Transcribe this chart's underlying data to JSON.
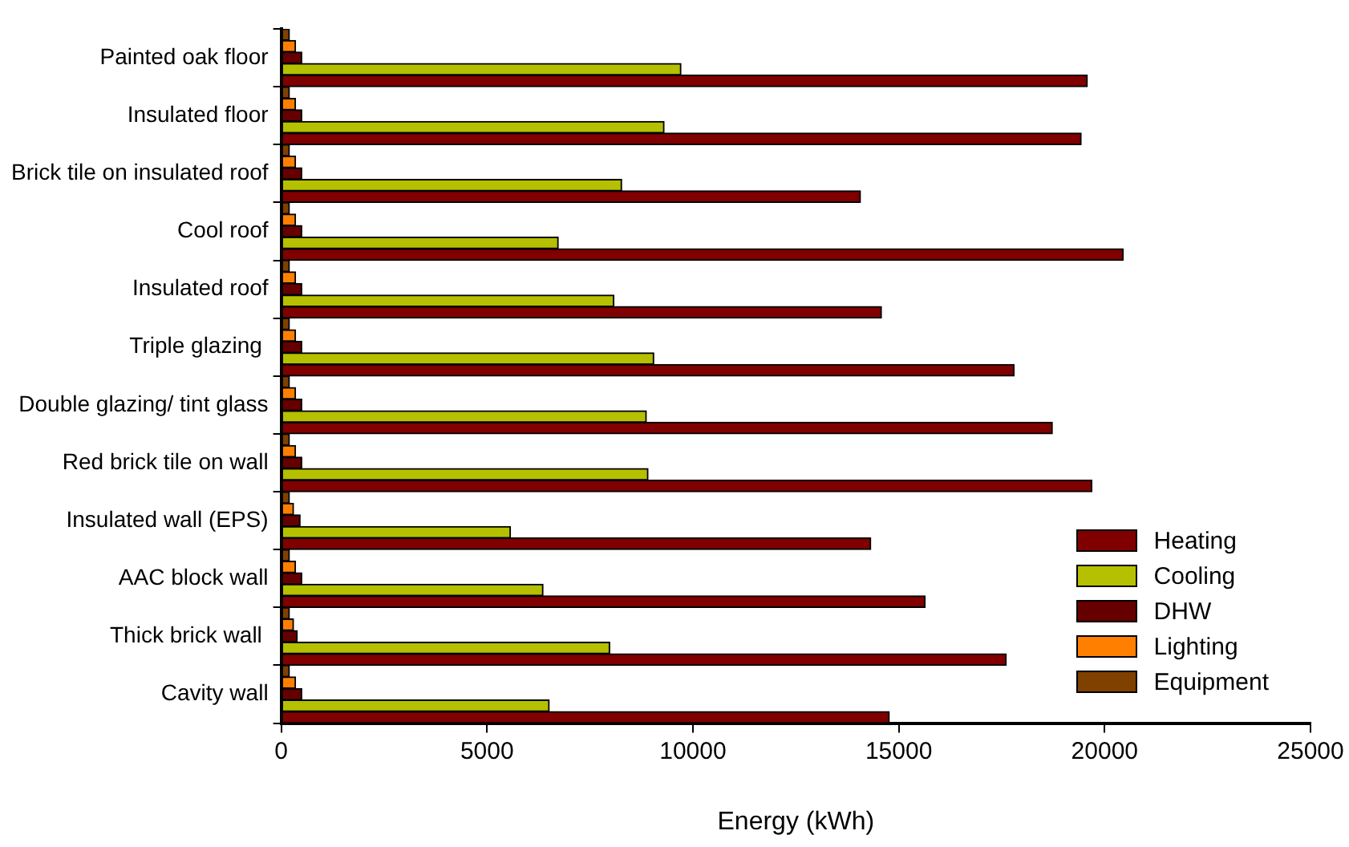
{
  "chart_data": {
    "type": "bar",
    "orientation": "horizontal",
    "xlabel": "Energy (kWh)",
    "categories": [
      "Painted oak floor",
      "Insulated floor",
      "Brick tile on insulated roof",
      "Cool roof",
      "Insulated roof",
      "Triple glazing ",
      "Double glazing/ tint glass",
      "Red brick tile on wall",
      "Insulated wall (EPS)",
      "AAC block wall",
      "Thick brick wall ",
      "Cavity wall"
    ],
    "series": [
      {
        "name": "Heating",
        "color": "#800000",
        "values": [
          19580,
          19430,
          14070,
          20450,
          14580,
          17800,
          18730,
          19690,
          14320,
          15640,
          17610,
          14770
        ]
      },
      {
        "name": "Cooling",
        "color": "#b5c000",
        "values": [
          9710,
          9300,
          8270,
          6730,
          8080,
          9050,
          8870,
          8910,
          5570,
          6360,
          7980,
          6510
        ]
      },
      {
        "name": "DHW",
        "color": "#660000",
        "values": [
          500,
          500,
          500,
          500,
          500,
          500,
          500,
          500,
          460,
          500,
          390,
          500
        ]
      },
      {
        "name": "Lighting",
        "color": "#ff8000",
        "values": [
          350,
          350,
          350,
          350,
          350,
          350,
          350,
          350,
          300,
          350,
          300,
          350
        ]
      },
      {
        "name": "Equipment",
        "color": "#804000",
        "values": [
          200,
          200,
          200,
          200,
          200,
          200,
          200,
          200,
          200,
          200,
          200,
          200
        ]
      }
    ],
    "xlim": [
      0,
      25000
    ],
    "xticks": [
      0,
      5000,
      10000,
      15000,
      20000,
      25000
    ],
    "grid": false,
    "legend": "bottom right"
  }
}
